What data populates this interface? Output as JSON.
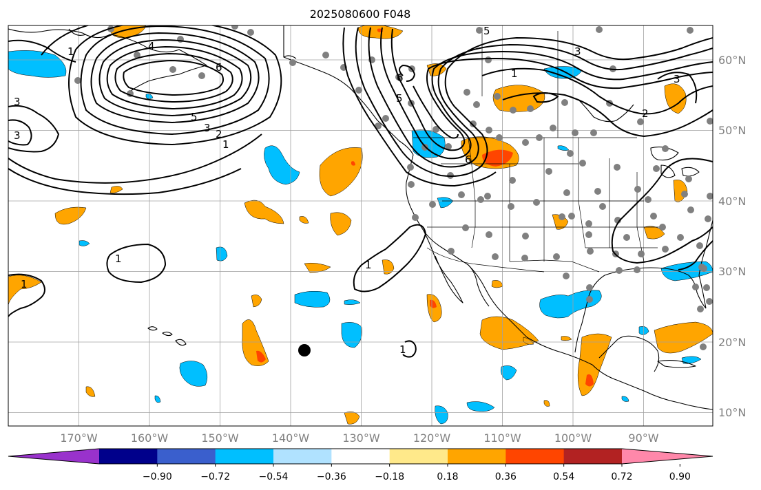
{
  "title": "2025080600 F048",
  "lon_labels": [
    "170°W",
    "160°W",
    "150°W",
    "140°W",
    "130°W",
    "120°W",
    "110°W",
    "100°W",
    "90°W"
  ],
  "lat_labels": [
    "60°N",
    "50°N",
    "40°N",
    "30°N",
    "20°N",
    "10°N"
  ],
  "colorbar": {
    "ticks": [
      "−0.90",
      "−0.72",
      "−0.54",
      "−0.36",
      "−0.18",
      "0.18",
      "0.36",
      "0.54",
      "0.72",
      "0.90"
    ],
    "colors": [
      "#9932cc",
      "#00008b",
      "#3a5fcd",
      "#00bfff",
      "#b0e2ff",
      "#ffffff",
      "#ffe98a",
      "#ffa500",
      "#ff4500",
      "#b22222",
      "#ff88aa"
    ]
  },
  "contour_labels": {
    "l1": "1",
    "l2": "4",
    "l3": "6",
    "l4": "5",
    "l5": "3",
    "l6": "2",
    "l7": "1",
    "l8": "3",
    "l9": "3",
    "l10": "5",
    "l11": "5",
    "l12": "6",
    "l13": "3",
    "l14": "1",
    "l15": "6",
    "l16": "1",
    "l17": "1",
    "l18": "1",
    "l19": "1",
    "l20": "3",
    "l21": "2"
  }
}
